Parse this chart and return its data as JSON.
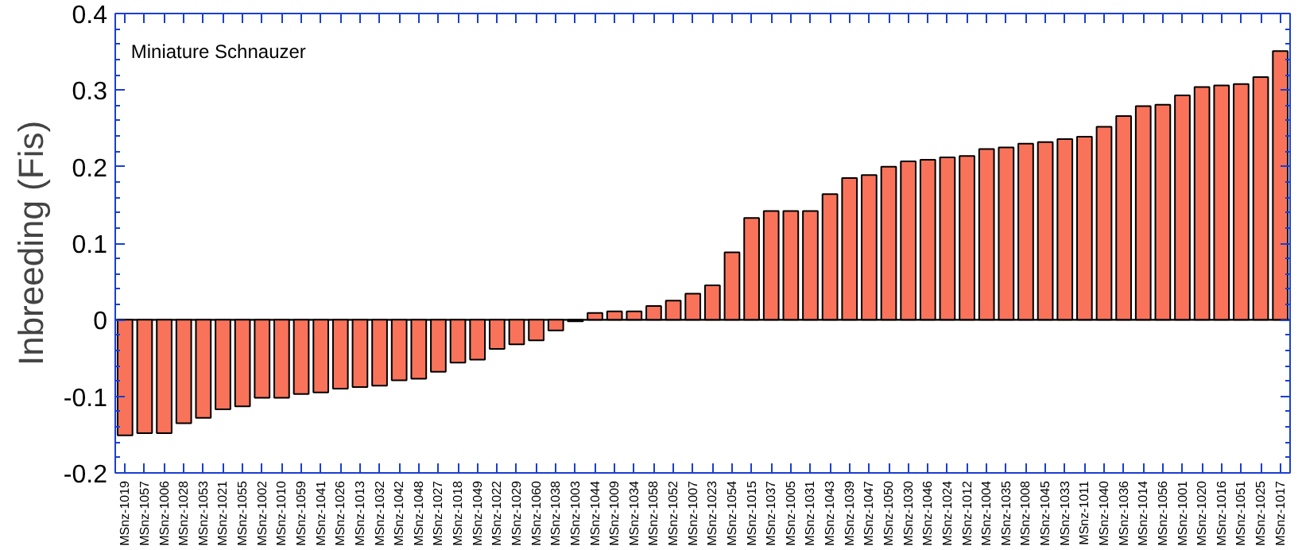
{
  "chart_data": {
    "type": "bar",
    "ylabel": "Inbreeding (Fis)",
    "annotations": [
      "Miniature Schnauzer"
    ],
    "categories": [
      "MSnz-1019",
      "MSnz-1057",
      "MSnz-1006",
      "MSnz-1028",
      "MSnz-1053",
      "MSnz-1021",
      "MSnz-1055",
      "MSnz-1002",
      "MSnz-1010",
      "MSnz-1059",
      "MSnz-1041",
      "MSnz-1026",
      "MSnz-1013",
      "MSnz-1032",
      "MSnz-1042",
      "MSnz-1048",
      "MSnz-1027",
      "MSnz-1018",
      "MSnz-1049",
      "MSnz-1022",
      "MSnz-1029",
      "MSnz-1060",
      "MSnz-1038",
      "MSnz-1003",
      "MSnz-1044",
      "MSnz-1009",
      "MSnz-1034",
      "MSnz-1058",
      "MSnz-1052",
      "MSnz-1007",
      "MSnz-1023",
      "MSnz-1054",
      "MSnz-1015",
      "MSnz-1037",
      "MSnz-1005",
      "MSnz-1031",
      "MSnz-1043",
      "MSnz-1039",
      "MSnz-1047",
      "MSnz-1050",
      "MSnz-1030",
      "MSnz-1046",
      "MSnz-1024",
      "MSnz-1012",
      "MSnz-1004",
      "MSnz-1035",
      "MSnz-1008",
      "MSnz-1045",
      "MSnz-1033",
      "MSnz-1011",
      "MSnz-1040",
      "MSnz-1036",
      "MSnz-1014",
      "MSnz-1056",
      "MSnz-1001",
      "MSnz-1020",
      "MSnz-1016",
      "MSnz-1051",
      "MSnz-1025",
      "MSnz-1017"
    ],
    "values": [
      -0.151,
      -0.148,
      -0.148,
      -0.135,
      -0.128,
      -0.117,
      -0.113,
      -0.102,
      -0.102,
      -0.097,
      -0.095,
      -0.09,
      -0.088,
      -0.086,
      -0.079,
      -0.077,
      -0.068,
      -0.056,
      -0.052,
      -0.038,
      -0.032,
      -0.027,
      -0.014,
      -0.002,
      0.009,
      0.011,
      0.011,
      0.018,
      0.025,
      0.034,
      0.045,
      0.088,
      0.133,
      0.142,
      0.142,
      0.142,
      0.164,
      0.185,
      0.189,
      0.2,
      0.207,
      0.209,
      0.212,
      0.214,
      0.223,
      0.225,
      0.23,
      0.232,
      0.236,
      0.239,
      0.252,
      0.266,
      0.279,
      0.281,
      0.293,
      0.304,
      0.306,
      0.308,
      0.317,
      0.351
    ],
    "color": "#f8735a",
    "ylim": [
      -0.2,
      0.4
    ],
    "yticks": [
      -0.2,
      -0.1,
      0,
      0.1,
      0.2,
      0.3,
      0.4
    ],
    "ref_lines": [
      {
        "axis": "y",
        "value": 0,
        "color": "#000000"
      }
    ],
    "grid": false
  }
}
